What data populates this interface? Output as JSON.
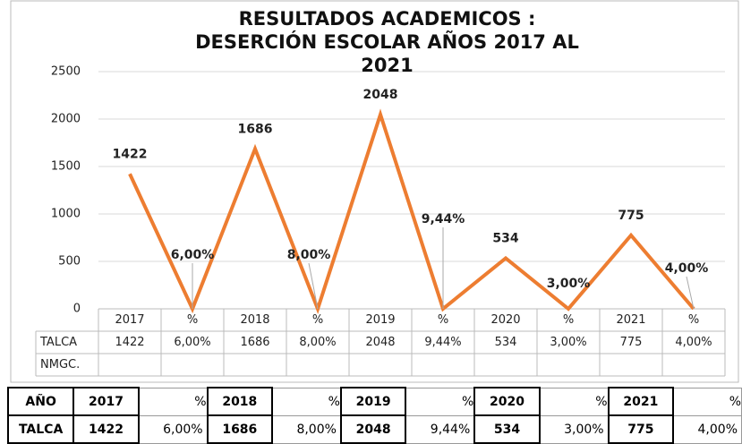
{
  "chart_data": {
    "type": "line",
    "title": "RESULTADOS ACADEMICOS :  DESERCIÓN ESCOLAR AÑOS 2017  AL 2021",
    "categories": [
      "2017",
      "%",
      "2018",
      "%",
      "2019",
      "%",
      "2020",
      "%",
      "2021",
      "%"
    ],
    "series": [
      {
        "name": "TALCA",
        "color": "#ed7d31",
        "values": [
          1422,
          0.06,
          1686,
          0.08,
          2048,
          0.0944,
          534,
          0.03,
          775,
          0.04
        ],
        "value_labels": [
          "1422",
          "6,00%",
          "1686",
          "8,00%",
          "2048",
          "9,44%",
          "534",
          "3,00%",
          "775",
          "4,00%"
        ]
      },
      {
        "name": "NMGC.",
        "color": "#4472c4",
        "values": [
          null,
          null,
          null,
          null,
          null,
          null,
          null,
          null,
          null,
          null
        ]
      }
    ],
    "ylim": [
      0,
      2500
    ],
    "yticks": [
      0,
      500,
      1000,
      1500,
      2000,
      2500
    ],
    "grid": true
  },
  "table": {
    "rows": [
      [
        "AÑO",
        "2017",
        "%",
        "2018",
        "%",
        "2019",
        "%",
        "2020",
        "%",
        "2021",
        "%"
      ],
      [
        "TALCA",
        "1422",
        "6,00%",
        "1686",
        "8,00%",
        "2048",
        "9,44%",
        "534",
        "3,00%",
        "775",
        "4,00%"
      ]
    ]
  }
}
